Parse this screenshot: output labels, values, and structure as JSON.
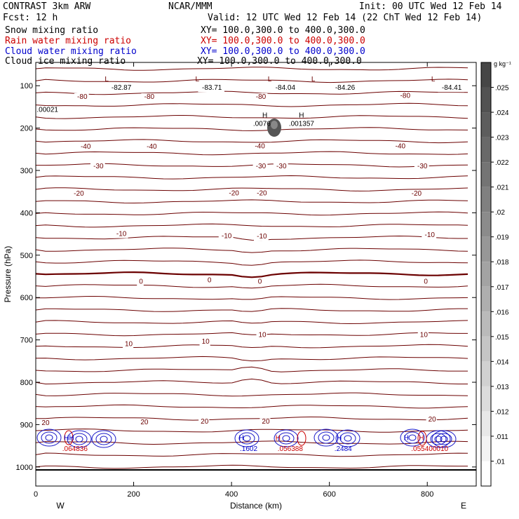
{
  "header": {
    "model": "CONTRAST  3km ARW",
    "org": "NCAR/MMM",
    "init": "Init: 00 UTC Wed 12 Feb 14",
    "fcst": "Fcst:   12 h",
    "valid": "Valid: 12 UTC Wed 12 Feb 14 (22 ChT Wed 12 Feb 14)",
    "fields": [
      {
        "name": "Snow mixing ratio",
        "xy": "XY= 100.0,300.0 to 400.0,300.0",
        "color": "#000000"
      },
      {
        "name": "Rain water mixing ratio",
        "xy": "XY= 100.0,300.0 to 400.0,300.0",
        "color": "#cc0000"
      },
      {
        "name": "Cloud water mixing ratio",
        "xy": "XY= 100.0,300.0 to 400.0,300.0",
        "color": "#0000cc"
      },
      {
        "name": "Cloud ice mixing ratio",
        "xy": "XY= 100.0,300.0 to 400.0,300.0",
        "color": "#000000"
      }
    ]
  },
  "chart_data": {
    "type": "contour cross-section",
    "xlabel": "Distance (km)",
    "ylabel": "Pressure (hPa)",
    "xlim": [
      0,
      900
    ],
    "ylim": [
      1045,
      45
    ],
    "x_ticks": [
      0,
      200,
      400,
      600,
      800
    ],
    "y_ticks": [
      100,
      200,
      300,
      400,
      500,
      600,
      700,
      800,
      900,
      1000
    ],
    "x_end_labels": {
      "left": "W",
      "right": "E"
    },
    "colorbar": {
      "unit": "g kg⁻¹",
      "levels": [
        ".01",
        ".011",
        ".012",
        ".013",
        ".014",
        ".015",
        ".016",
        ".017",
        ".018",
        ".019",
        ".02",
        ".021",
        ".022",
        ".023",
        ".024",
        ".025"
      ]
    },
    "temperature_labels": [
      {
        "x": 95,
        "p": 126,
        "t": "-80"
      },
      {
        "x": 232,
        "p": 126,
        "t": "-80"
      },
      {
        "x": 460,
        "p": 126,
        "t": "-80"
      },
      {
        "x": 755,
        "p": 124,
        "t": "-80"
      },
      {
        "x": 102,
        "p": 244,
        "t": "-40"
      },
      {
        "x": 237,
        "p": 244,
        "t": "-40"
      },
      {
        "x": 458,
        "p": 243,
        "t": "-40"
      },
      {
        "x": 745,
        "p": 243,
        "t": "-40"
      },
      {
        "x": 128,
        "p": 290,
        "t": "-30"
      },
      {
        "x": 460,
        "p": 290,
        "t": "-30"
      },
      {
        "x": 502,
        "p": 290,
        "t": "-30"
      },
      {
        "x": 790,
        "p": 290,
        "t": "-30"
      },
      {
        "x": 88,
        "p": 355,
        "t": "-20"
      },
      {
        "x": 405,
        "p": 354,
        "t": "-20"
      },
      {
        "x": 462,
        "p": 354,
        "t": "-20"
      },
      {
        "x": 778,
        "p": 355,
        "t": "-20"
      },
      {
        "x": 175,
        "p": 450,
        "t": "-10"
      },
      {
        "x": 390,
        "p": 455,
        "t": "-10"
      },
      {
        "x": 462,
        "p": 456,
        "t": "-10"
      },
      {
        "x": 805,
        "p": 452,
        "t": "-10"
      },
      {
        "x": 215,
        "p": 562,
        "t": "0"
      },
      {
        "x": 355,
        "p": 559,
        "t": "0"
      },
      {
        "x": 458,
        "p": 562,
        "t": "0"
      },
      {
        "x": 797,
        "p": 562,
        "t": "0"
      },
      {
        "x": 190,
        "p": 710,
        "t": "10"
      },
      {
        "x": 347,
        "p": 704,
        "t": "10"
      },
      {
        "x": 463,
        "p": 688,
        "t": "10"
      },
      {
        "x": 793,
        "p": 688,
        "t": "10"
      },
      {
        "x": 20,
        "p": 896,
        "t": "20"
      },
      {
        "x": 222,
        "p": 894,
        "t": "20"
      },
      {
        "x": 345,
        "p": 893,
        "t": "20"
      },
      {
        "x": 470,
        "p": 893,
        "t": "20"
      },
      {
        "x": 810,
        "p": 888,
        "t": "20"
      }
    ],
    "extrema": [
      {
        "sym": "L",
        "x": 145,
        "p": 85
      },
      {
        "sym": "L",
        "x": 330,
        "p": 85
      },
      {
        "sym": "L",
        "x": 478,
        "p": 85
      },
      {
        "sym": "L",
        "x": 567,
        "p": 85
      },
      {
        "sym": "L",
        "x": 812,
        "p": 85
      },
      {
        "sym": "H",
        "x": 468,
        "p": 170
      },
      {
        "sym": "H",
        "x": 543,
        "p": 170
      },
      {
        "sym": "HH",
        "x": 68,
        "p": 932
      },
      {
        "sym": "H",
        "x": 420,
        "p": 932
      },
      {
        "sym": "H",
        "x": 495,
        "p": 932
      },
      {
        "sym": "H",
        "x": 620,
        "p": 932
      },
      {
        "sym": "H",
        "x": 757,
        "p": 932
      },
      {
        "sym": "H",
        "x": 788,
        "p": 932
      }
    ],
    "min_values": [
      {
        "x": 175,
        "p": 105,
        "t": "-82.87"
      },
      {
        "x": 360,
        "p": 105,
        "t": "-83.71"
      },
      {
        "x": 510,
        "p": 105,
        "t": "-84.04"
      },
      {
        "x": 632,
        "p": 105,
        "t": "-84.26"
      },
      {
        "x": 850,
        "p": 105,
        "t": "-84.41"
      }
    ],
    "max_values": [
      {
        "x": 2,
        "p": 157,
        "t": ".00021",
        "color": "#000000"
      },
      {
        "x": 462,
        "p": 190,
        "t": ".0076",
        "color": "#000000"
      },
      {
        "x": 543,
        "p": 190,
        "t": ".001357",
        "color": "#000000"
      },
      {
        "x": 80,
        "p": 957,
        "t": ".064836",
        "color": "#cc0000"
      },
      {
        "x": 435,
        "p": 957,
        "t": ".1602",
        "color": "#0000cc"
      },
      {
        "x": 520,
        "p": 957,
        "t": ".056388",
        "color": "#cc0000"
      },
      {
        "x": 628,
        "p": 957,
        "t": ".2484",
        "color": "#0000cc"
      },
      {
        "x": 805,
        "p": 957,
        "t": ".055400010",
        "color": "#cc0000"
      }
    ]
  }
}
